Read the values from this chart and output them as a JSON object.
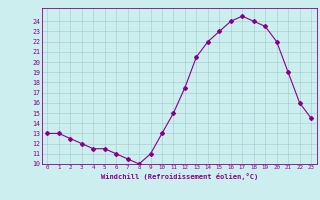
{
  "x": [
    0,
    1,
    2,
    3,
    4,
    5,
    6,
    7,
    8,
    9,
    10,
    11,
    12,
    13,
    14,
    15,
    16,
    17,
    18,
    19,
    20,
    21,
    22,
    23
  ],
  "y": [
    13.0,
    13.0,
    12.5,
    12.0,
    11.5,
    11.5,
    11.0,
    10.5,
    10.0,
    11.0,
    13.0,
    15.0,
    17.5,
    20.5,
    22.0,
    23.0,
    24.0,
    24.5,
    24.0,
    23.5,
    22.0,
    19.0,
    16.0,
    14.5
  ],
  "line_color": "#880088",
  "marker": "D",
  "marker_size": 2.0,
  "bg_color": "#cceeee",
  "grid_color": "#99cccc",
  "xlabel": "Windchill (Refroidissement éolien,°C)",
  "xlabel_color": "#880088",
  "tick_color": "#880088",
  "xlim": [
    -0.5,
    23.5
  ],
  "ylim": [
    10,
    25
  ],
  "yticks": [
    10,
    11,
    12,
    13,
    14,
    15,
    16,
    17,
    18,
    19,
    20,
    21,
    22,
    23,
    24
  ],
  "xticks": [
    0,
    1,
    2,
    3,
    4,
    5,
    6,
    7,
    8,
    9,
    10,
    11,
    12,
    13,
    14,
    15,
    16,
    17,
    18,
    19,
    20,
    21,
    22,
    23
  ],
  "spine_color": "#880088",
  "linewidth": 0.8
}
